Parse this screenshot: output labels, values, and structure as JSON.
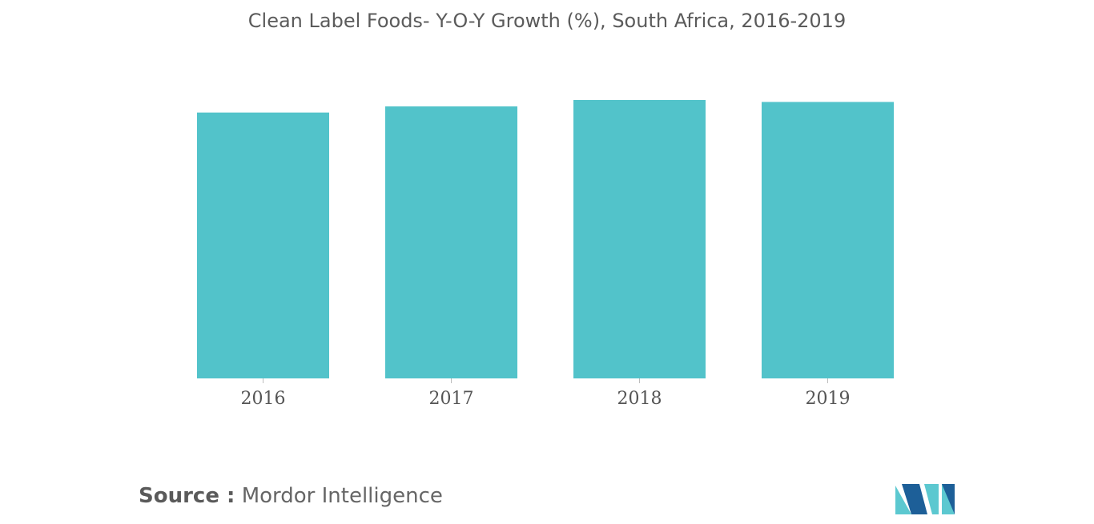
{
  "chart_data": {
    "type": "bar",
    "title": "Clean Label Foods- Y-O-Y Growth (%), South Africa, 2016-2019",
    "categories": [
      "2016",
      "2017",
      "2018",
      "2019"
    ],
    "values": [
      95.5,
      97.7,
      100,
      99.3
    ],
    "ylim": [
      0,
      100
    ],
    "bar_color": "#52c3ca",
    "grid": false
  },
  "source": {
    "label": "Source :",
    "text": "Mordor Intelligence"
  },
  "logo_colors": {
    "dark": "#1d5f98",
    "light": "#5cc8d0"
  }
}
